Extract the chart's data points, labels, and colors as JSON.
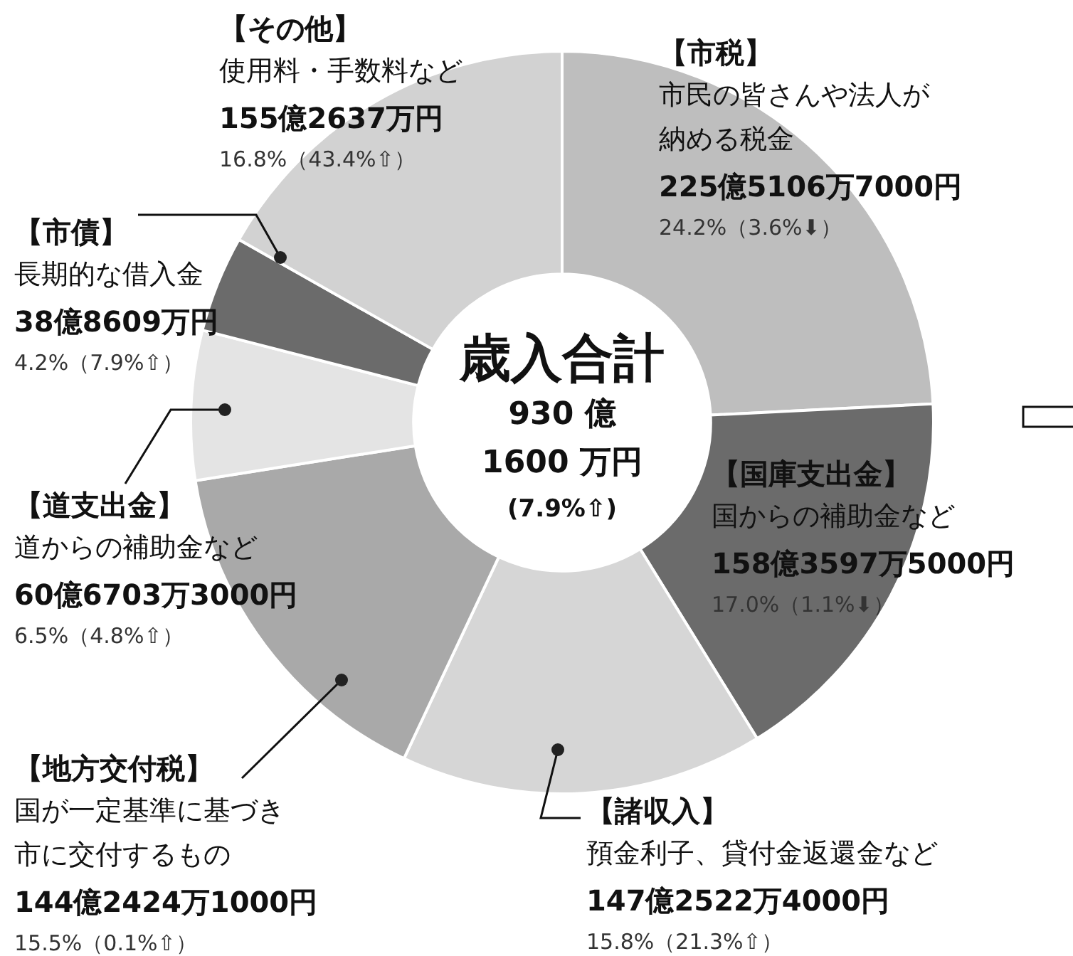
{
  "chart_data": {
    "type": "donut",
    "title": "歳入合計",
    "categories": [
      "【市税】",
      "【国庫支出金】",
      "【諸収入】",
      "【地方交付税】",
      "【道支出金】",
      "【市債】",
      "【その他】"
    ],
    "values": [
      24.2,
      17.0,
      15.8,
      15.5,
      6.5,
      4.2,
      16.8
    ],
    "colors": [
      "#bebebe",
      "#6b6b6b",
      "#d6d6d6",
      "#a9a9a9",
      "#e4e4e4",
      "#6b6b6b",
      "#d2d2d2"
    ],
    "annotations": [
      "市民の皆さんや法人が納める税金",
      "国からの補助金など",
      "預金利子、貸付金返還金など",
      "国が一定基準に基づき市に交付するもの",
      "道からの補助金など",
      "長期的な借入金",
      "使用料・手数料など",
      "225億5106万7000円",
      "158億3597万5000円",
      "147億2522万4000円",
      "144億2424万1000円",
      "60億6703万3000円",
      "38億8609万円",
      "155億2637万円",
      "24.2%（3.6%⬇）",
      "17.0%（1.1%⬇）",
      "15.8%（21.3%⇧）",
      "15.5%（0.1%⇧）",
      "6.5%（4.8%⇧）",
      "4.2%（7.9%⇧）",
      "16.8%（43.4%⇧）",
      "930 億",
      "1600 万円",
      "(7.9%⇧)"
    ],
    "legend": false
  }
}
